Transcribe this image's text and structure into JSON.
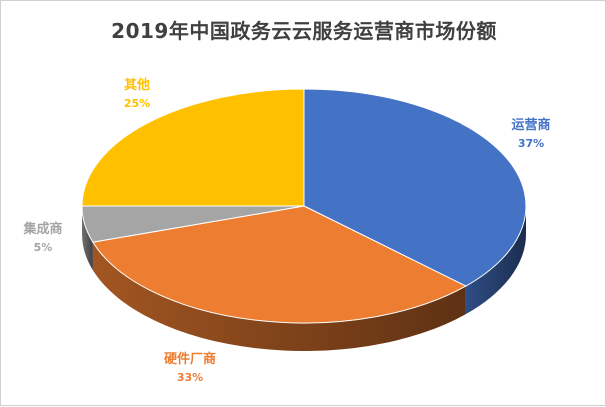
{
  "chart_data": {
    "type": "pie",
    "title": "2019年中国政务云云服务运营商市场份额",
    "slices": [
      {
        "label": "运营商",
        "value": 37,
        "value_label": "37%",
        "color": "#4472C4"
      },
      {
        "label": "硬件厂商",
        "value": 33,
        "value_label": "33%",
        "color": "#ED7D31"
      },
      {
        "label": "集成商",
        "value": 5,
        "value_label": "5%",
        "color": "#A5A5A5"
      },
      {
        "label": "其他",
        "value": 25,
        "value_label": "25%",
        "color": "#FFC000"
      }
    ]
  }
}
